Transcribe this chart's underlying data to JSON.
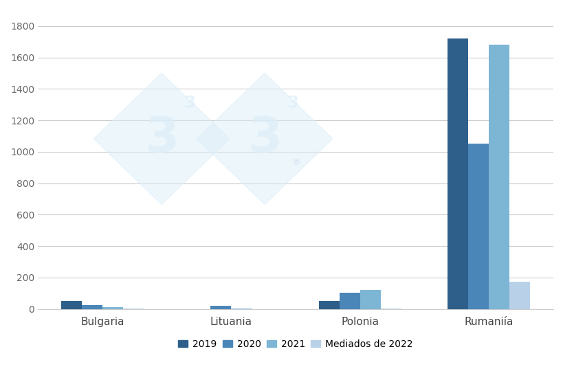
{
  "categories": [
    "Bulgaria",
    "Lituania",
    "Polonia",
    "Rumaniía"
  ],
  "years": [
    "2019",
    "2020",
    "2021",
    "Mediados de 2022"
  ],
  "values": {
    "Bulgaria": [
      50,
      25,
      10,
      5
    ],
    "Lituania": [
      0,
      20,
      5,
      0
    ],
    "Polonia": [
      50,
      105,
      120,
      5
    ],
    "Rumaniía": [
      1720,
      1050,
      1680,
      175
    ]
  },
  "colors": [
    "#2e5f8a",
    "#4a86b8",
    "#7db5d5",
    "#b8d0e8"
  ],
  "ylim": [
    0,
    1900
  ],
  "yticks": [
    0,
    200,
    400,
    600,
    800,
    1000,
    1200,
    1400,
    1600,
    1800
  ],
  "legend_labels": [
    "2019",
    "2020",
    "2021",
    "Mediados de 2022"
  ],
  "bar_width": 0.16,
  "figsize": [
    8.2,
    5.69
  ],
  "dpi": 100
}
